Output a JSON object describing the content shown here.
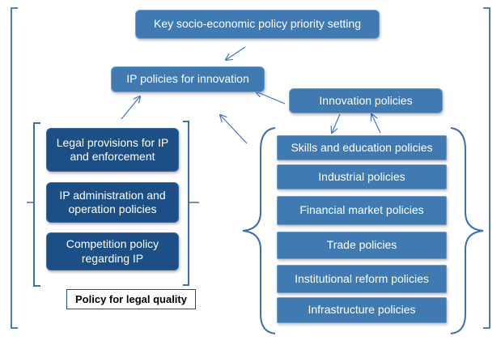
{
  "colors": {
    "box_mid": "#3f7ab3",
    "box_dark": "#1c4f86",
    "line": "#4472c4"
  },
  "nodes": {
    "key_priority": "Key socio-economic policy priority setting",
    "ip_innovation": "IP policies for innovation",
    "innovation_policies": "Innovation policies",
    "legal_provisions": "Legal provisions for IP and enforcement",
    "ip_administration": "IP  administration and operation policies",
    "competition": "Competition  policy regarding IP",
    "legal_quality": "Policy for legal quality",
    "skills": "Skills and education policies",
    "industrial": "Industrial policies",
    "financial": "Financial  market policies",
    "trade": "Trade policies",
    "institutional": "Institutional reform policies",
    "infrastructure": "Infrastructure policies"
  }
}
